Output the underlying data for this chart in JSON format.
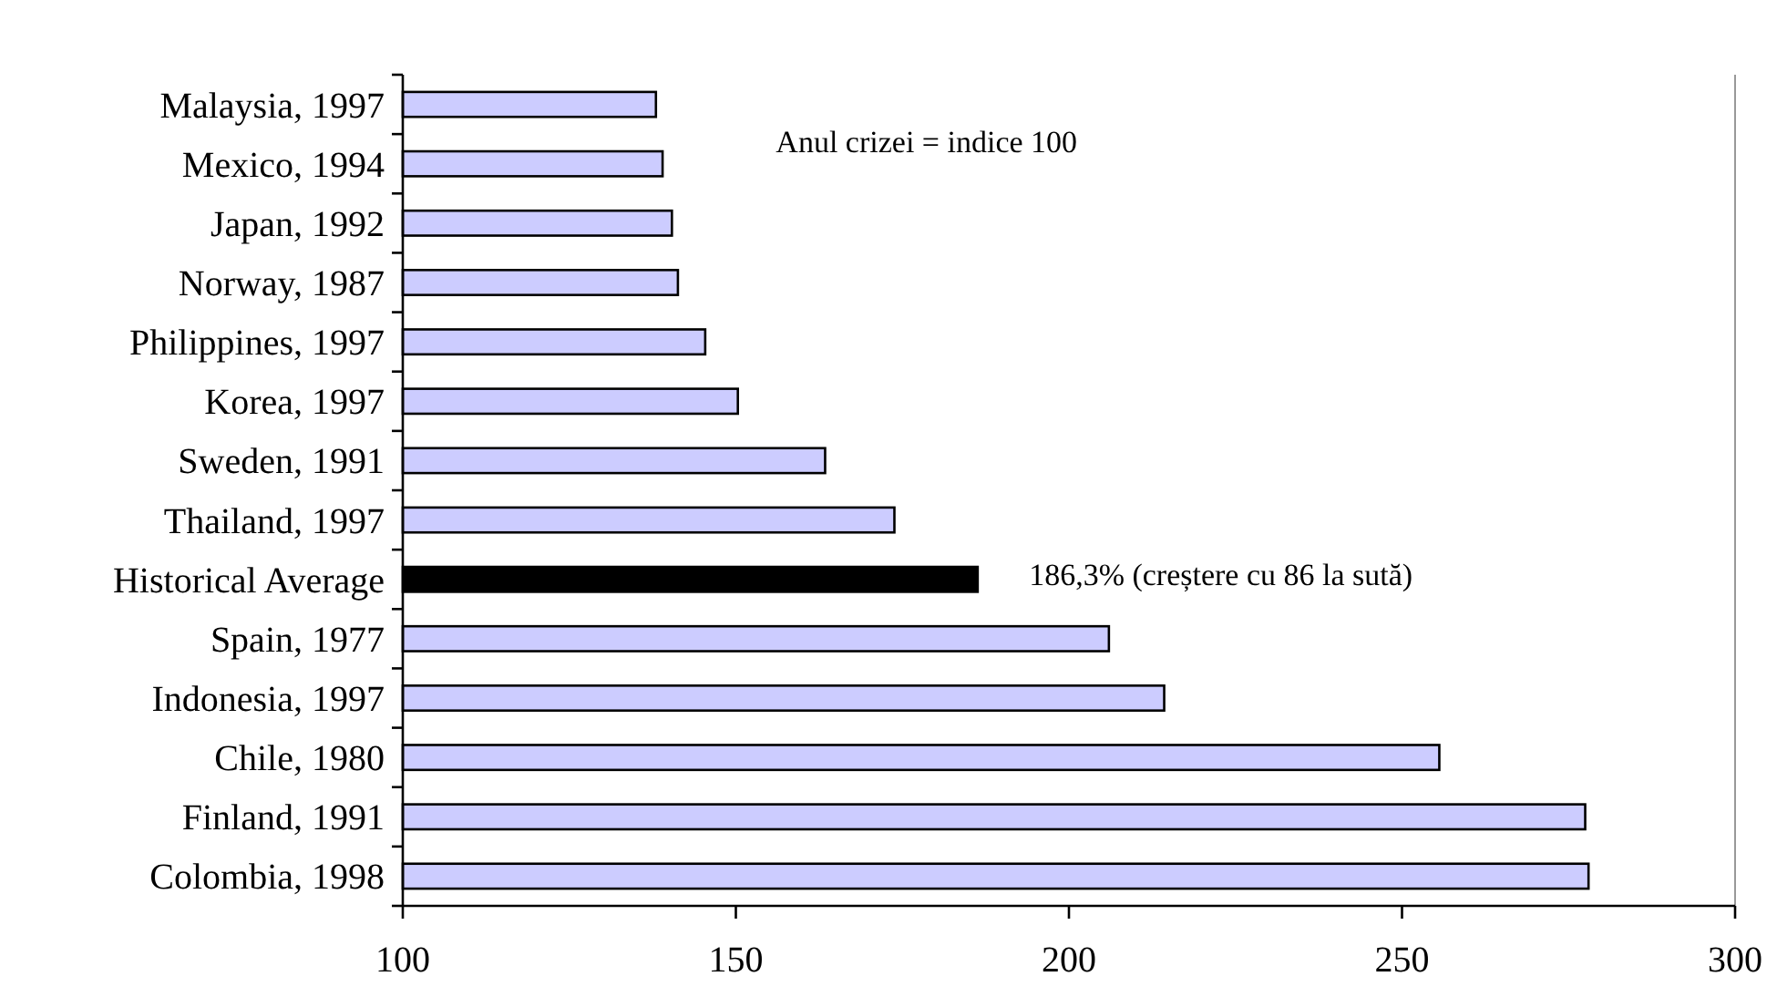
{
  "chart_data": {
    "type": "bar",
    "orientation": "horizontal",
    "categories": [
      "Malaysia, 1997",
      "Mexico, 1994",
      "Japan, 1992",
      "Norway, 1987",
      "Philippines, 1997",
      "Korea, 1997",
      "Sweden, 1991",
      "Thailand, 1997",
      "Historical Average",
      "Spain, 1977",
      "Indonesia, 1997",
      "Chile, 1980",
      "Finland, 1991",
      "Colombia, 1998"
    ],
    "values": [
      138,
      139,
      140.4,
      141.3,
      145.4,
      150.3,
      163.4,
      173.8,
      186.3,
      206,
      214.3,
      255.6,
      277.5,
      278
    ],
    "colors": [
      "#ccccff",
      "#ccccff",
      "#ccccff",
      "#ccccff",
      "#ccccff",
      "#ccccff",
      "#ccccff",
      "#ccccff",
      "#000000",
      "#ccccff",
      "#ccccff",
      "#ccccff",
      "#ccccff",
      "#ccccff"
    ],
    "xlim": [
      100,
      300
    ],
    "xticks": [
      100,
      150,
      200,
      250,
      300
    ],
    "grid": false,
    "annotations": [
      "Anul crizei = indice 100",
      "186,3% (creștere cu 86 la sută)"
    ]
  }
}
